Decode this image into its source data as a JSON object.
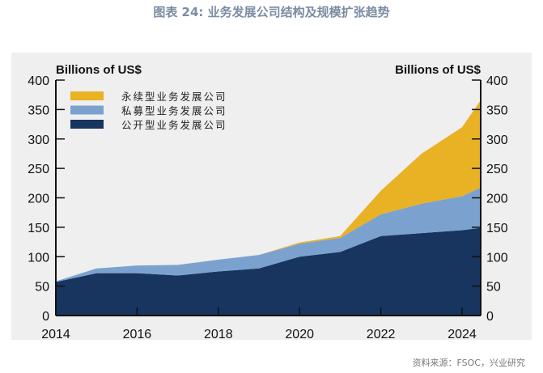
{
  "title": "图表 24: 业务发展公司结构及规模扩张趋势",
  "source": "资料来源：FSOC，兴业研究",
  "chart_data": {
    "type": "area",
    "stacked": true,
    "left_axis_label": "Billions of US$",
    "right_axis_label": "Billions of US$",
    "x": [
      2014,
      2015,
      2016,
      2017,
      2018,
      2019,
      2020,
      2021,
      2022,
      2023,
      2024,
      2024.45
    ],
    "xlim": [
      2014,
      2024.45
    ],
    "xticks": [
      "2014",
      "2016",
      "2018",
      "2020",
      "2022",
      "2024"
    ],
    "ylim": [
      0,
      400
    ],
    "yticks": [
      "0",
      "50",
      "100",
      "150",
      "200",
      "250",
      "300",
      "350",
      "400"
    ],
    "legend_position": "top-left",
    "series": [
      {
        "name": "公开型业务发展公司",
        "color": "#17355e",
        "values": [
          57,
          72,
          72,
          68,
          75,
          80,
          100,
          108,
          135,
          140,
          145,
          149
        ]
      },
      {
        "name": "私募型业务发展公司",
        "color": "#7ba2cf",
        "values": [
          1,
          8,
          13,
          18,
          20,
          23,
          22,
          24,
          37,
          50,
          58,
          68
        ]
      },
      {
        "name": "永续型业务发展公司",
        "color": "#e8b224",
        "values": [
          0,
          0,
          0,
          0,
          0,
          0,
          2,
          3,
          40,
          85,
          117,
          148
        ]
      }
    ]
  }
}
